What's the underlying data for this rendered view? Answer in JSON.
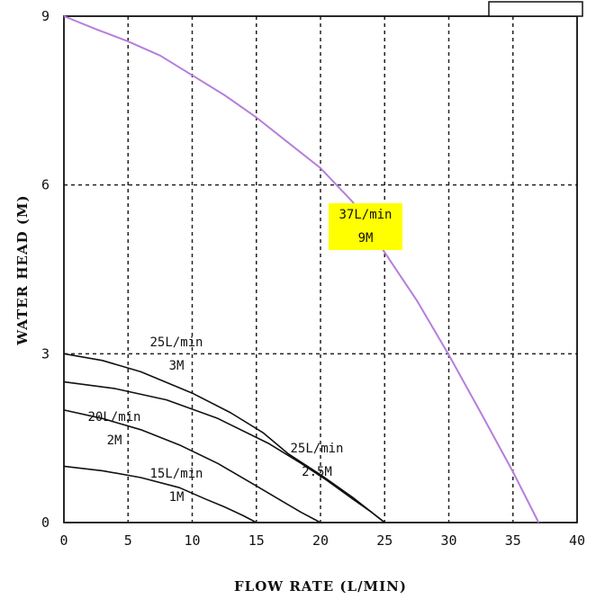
{
  "chart_data": {
    "type": "line",
    "xlabel": "FLOW RATE (L/MIN)",
    "ylabel": "WATER HEAD (M)",
    "xlim": [
      0,
      40
    ],
    "ylim": [
      0,
      9
    ],
    "x_ticks": [
      "0",
      "5",
      "10",
      "15",
      "20",
      "25",
      "30",
      "35",
      "40"
    ],
    "y_ticks": [
      "0",
      "3",
      "6",
      "9"
    ],
    "grid": true,
    "series": [
      {
        "label_lines": [
          "37L/min",
          "9M"
        ],
        "color": "#b57edc",
        "highlight": "#ffff00",
        "x": [
          0,
          2.5,
          5,
          7.5,
          10,
          12.5,
          15,
          17.5,
          20,
          22.5,
          25,
          27.5,
          30,
          32.5,
          35,
          37
        ],
        "y": [
          9,
          8.77,
          8.55,
          8.3,
          7.95,
          7.6,
          7.2,
          6.75,
          6.3,
          5.7,
          4.8,
          3.95,
          2.98,
          1.95,
          0.9,
          0
        ]
      },
      {
        "label_lines": [
          "25L/min",
          "3M"
        ],
        "color": "#111111",
        "x": [
          0,
          3,
          6,
          10,
          13,
          15.5,
          17.5,
          20,
          22.5,
          25
        ],
        "y": [
          3.0,
          2.88,
          2.68,
          2.3,
          1.95,
          1.6,
          1.22,
          0.85,
          0.45,
          0
        ]
      },
      {
        "label_lines": [
          "25L/min",
          "2.5M"
        ],
        "color": "#111111",
        "x": [
          0,
          4,
          8,
          12,
          16,
          18.5,
          20.5,
          22.5,
          24,
          25
        ],
        "y": [
          2.5,
          2.38,
          2.18,
          1.85,
          1.4,
          1.05,
          0.75,
          0.42,
          0.18,
          0
        ]
      },
      {
        "label_lines": [
          "20L/min",
          "2M"
        ],
        "color": "#111111",
        "x": [
          0,
          3,
          6,
          9,
          12,
          15,
          17,
          18.5,
          20
        ],
        "y": [
          2.0,
          1.85,
          1.65,
          1.38,
          1.05,
          0.65,
          0.38,
          0.18,
          0
        ]
      },
      {
        "label_lines": [
          "15L/min",
          "1M"
        ],
        "color": "#111111",
        "x": [
          0,
          3,
          6,
          9,
          11,
          12.5,
          14,
          15
        ],
        "y": [
          1.0,
          0.92,
          0.8,
          0.62,
          0.42,
          0.28,
          0.12,
          0
        ]
      }
    ]
  }
}
